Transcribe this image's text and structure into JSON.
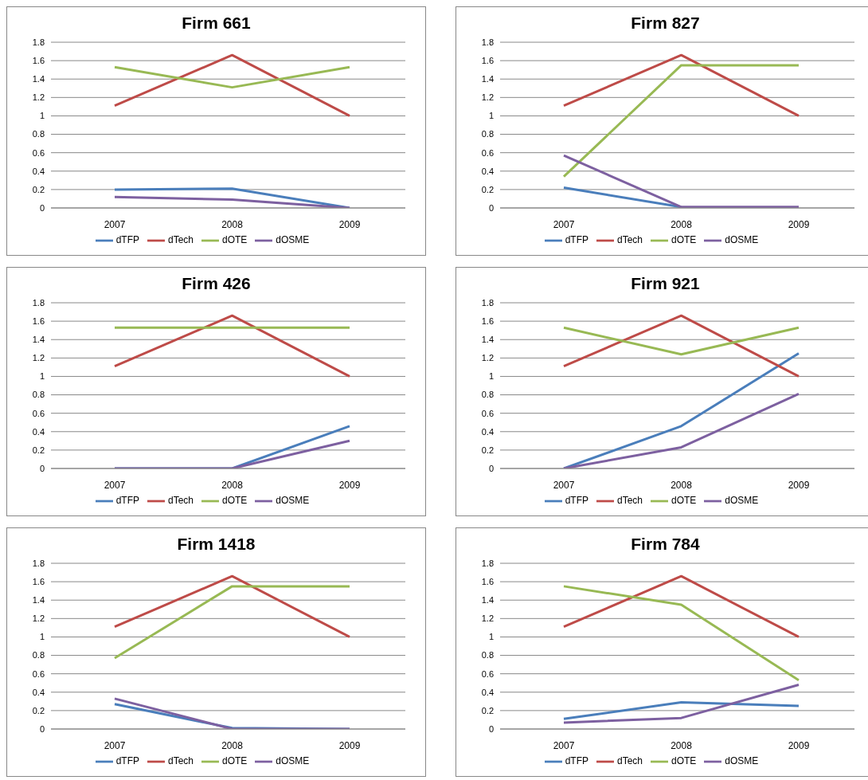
{
  "chart_data": [
    {
      "type": "line",
      "title": "Firm 661",
      "categories": [
        "2007",
        "2008",
        "2009"
      ],
      "series": [
        {
          "name": "dTFP",
          "color": "#4a7ebb",
          "values": [
            0.2,
            0.21,
            0
          ]
        },
        {
          "name": "dTech",
          "color": "#be4b48",
          "values": [
            1.11,
            1.66,
            1.0
          ]
        },
        {
          "name": "dOTE",
          "color": "#98b954",
          "values": [
            1.53,
            1.31,
            1.53
          ]
        },
        {
          "name": "dOSME",
          "color": "#7d60a0",
          "values": [
            0.12,
            0.09,
            0
          ]
        }
      ],
      "ylim": [
        0,
        1.8
      ],
      "yticks": [
        0,
        0.2,
        0.4,
        0.6,
        0.8,
        1,
        1.2,
        1.4,
        1.6,
        1.8
      ],
      "grid": "y",
      "legend": "bottom",
      "marker": "none"
    },
    {
      "type": "line",
      "title": "Firm 827",
      "categories": [
        "2007",
        "2008",
        "2009"
      ],
      "series": [
        {
          "name": "dTFP",
          "color": "#4a7ebb",
          "values": [
            0.22,
            0.01,
            null
          ]
        },
        {
          "name": "dTech",
          "color": "#be4b48",
          "values": [
            1.11,
            1.66,
            1.0
          ]
        },
        {
          "name": "dOTE",
          "color": "#98b954",
          "values": [
            0.34,
            1.55,
            1.55
          ]
        },
        {
          "name": "dOSME",
          "color": "#7d60a0",
          "values": [
            0.57,
            0.01,
            0.01
          ]
        }
      ],
      "ylim": [
        0,
        1.8
      ],
      "yticks": [
        0,
        0.2,
        0.4,
        0.6,
        0.8,
        1,
        1.2,
        1.4,
        1.6,
        1.8
      ],
      "grid": "y",
      "legend": "bottom",
      "marker": "none"
    },
    {
      "type": "line",
      "title": "Firm 426",
      "categories": [
        "2007",
        "2008",
        "2009"
      ],
      "series": [
        {
          "name": "dTFP",
          "color": "#4a7ebb",
          "values": [
            0,
            0,
            0.46
          ]
        },
        {
          "name": "dTech",
          "color": "#be4b48",
          "values": [
            1.11,
            1.66,
            1.0
          ]
        },
        {
          "name": "dOTE",
          "color": "#98b954",
          "values": [
            1.53,
            1.53,
            1.53
          ]
        },
        {
          "name": "dOSME",
          "color": "#7d60a0",
          "values": [
            0,
            0,
            0.3
          ]
        }
      ],
      "ylim": [
        0,
        1.8
      ],
      "yticks": [
        0,
        0.2,
        0.4,
        0.6,
        0.8,
        1,
        1.2,
        1.4,
        1.6,
        1.8
      ],
      "grid": "y",
      "legend": "bottom",
      "marker": "none"
    },
    {
      "type": "line",
      "title": "Firm 921",
      "categories": [
        "2007",
        "2008",
        "2009"
      ],
      "series": [
        {
          "name": "dTFP",
          "color": "#4a7ebb",
          "values": [
            0,
            0.46,
            1.25
          ]
        },
        {
          "name": "dTech",
          "color": "#be4b48",
          "values": [
            1.11,
            1.66,
            1.0
          ]
        },
        {
          "name": "dOTE",
          "color": "#98b954",
          "values": [
            1.53,
            1.24,
            1.53
          ]
        },
        {
          "name": "dOSME",
          "color": "#7d60a0",
          "values": [
            0,
            0.23,
            0.81
          ]
        }
      ],
      "ylim": [
        0,
        1.8
      ],
      "yticks": [
        0,
        0.2,
        0.4,
        0.6,
        0.8,
        1,
        1.2,
        1.4,
        1.6,
        1.8
      ],
      "grid": "y",
      "legend": "bottom",
      "marker": "none"
    },
    {
      "type": "line",
      "title": "Firm 1418",
      "categories": [
        "2007",
        "2008",
        "2009"
      ],
      "series": [
        {
          "name": "dTFP",
          "color": "#4a7ebb",
          "values": [
            0.27,
            0.01,
            0
          ]
        },
        {
          "name": "dTech",
          "color": "#be4b48",
          "values": [
            1.11,
            1.66,
            1.0
          ]
        },
        {
          "name": "dOTE",
          "color": "#98b954",
          "values": [
            0.77,
            1.55,
            1.55
          ]
        },
        {
          "name": "dOSME",
          "color": "#7d60a0",
          "values": [
            0.33,
            0,
            0
          ]
        }
      ],
      "ylim": [
        0,
        1.8
      ],
      "yticks": [
        0,
        0.2,
        0.4,
        0.6,
        0.8,
        1,
        1.2,
        1.4,
        1.6,
        1.8
      ],
      "grid": "y",
      "legend": "bottom",
      "marker": "none"
    },
    {
      "type": "line",
      "title": "Firm 784",
      "categories": [
        "2007",
        "2008",
        "2009"
      ],
      "series": [
        {
          "name": "dTFP",
          "color": "#4a7ebb",
          "values": [
            0.11,
            0.29,
            0.25
          ]
        },
        {
          "name": "dTech",
          "color": "#be4b48",
          "values": [
            1.11,
            1.66,
            1.0
          ]
        },
        {
          "name": "dOTE",
          "color": "#98b954",
          "values": [
            1.55,
            1.35,
            0.53
          ]
        },
        {
          "name": "dOSME",
          "color": "#7d60a0",
          "values": [
            0.07,
            0.12,
            0.48
          ]
        }
      ],
      "ylim": [
        0,
        1.8
      ],
      "yticks": [
        0,
        0.2,
        0.4,
        0.6,
        0.8,
        1,
        1.2,
        1.4,
        1.6,
        1.8
      ],
      "grid": "y",
      "legend": "bottom",
      "marker": "none"
    }
  ]
}
